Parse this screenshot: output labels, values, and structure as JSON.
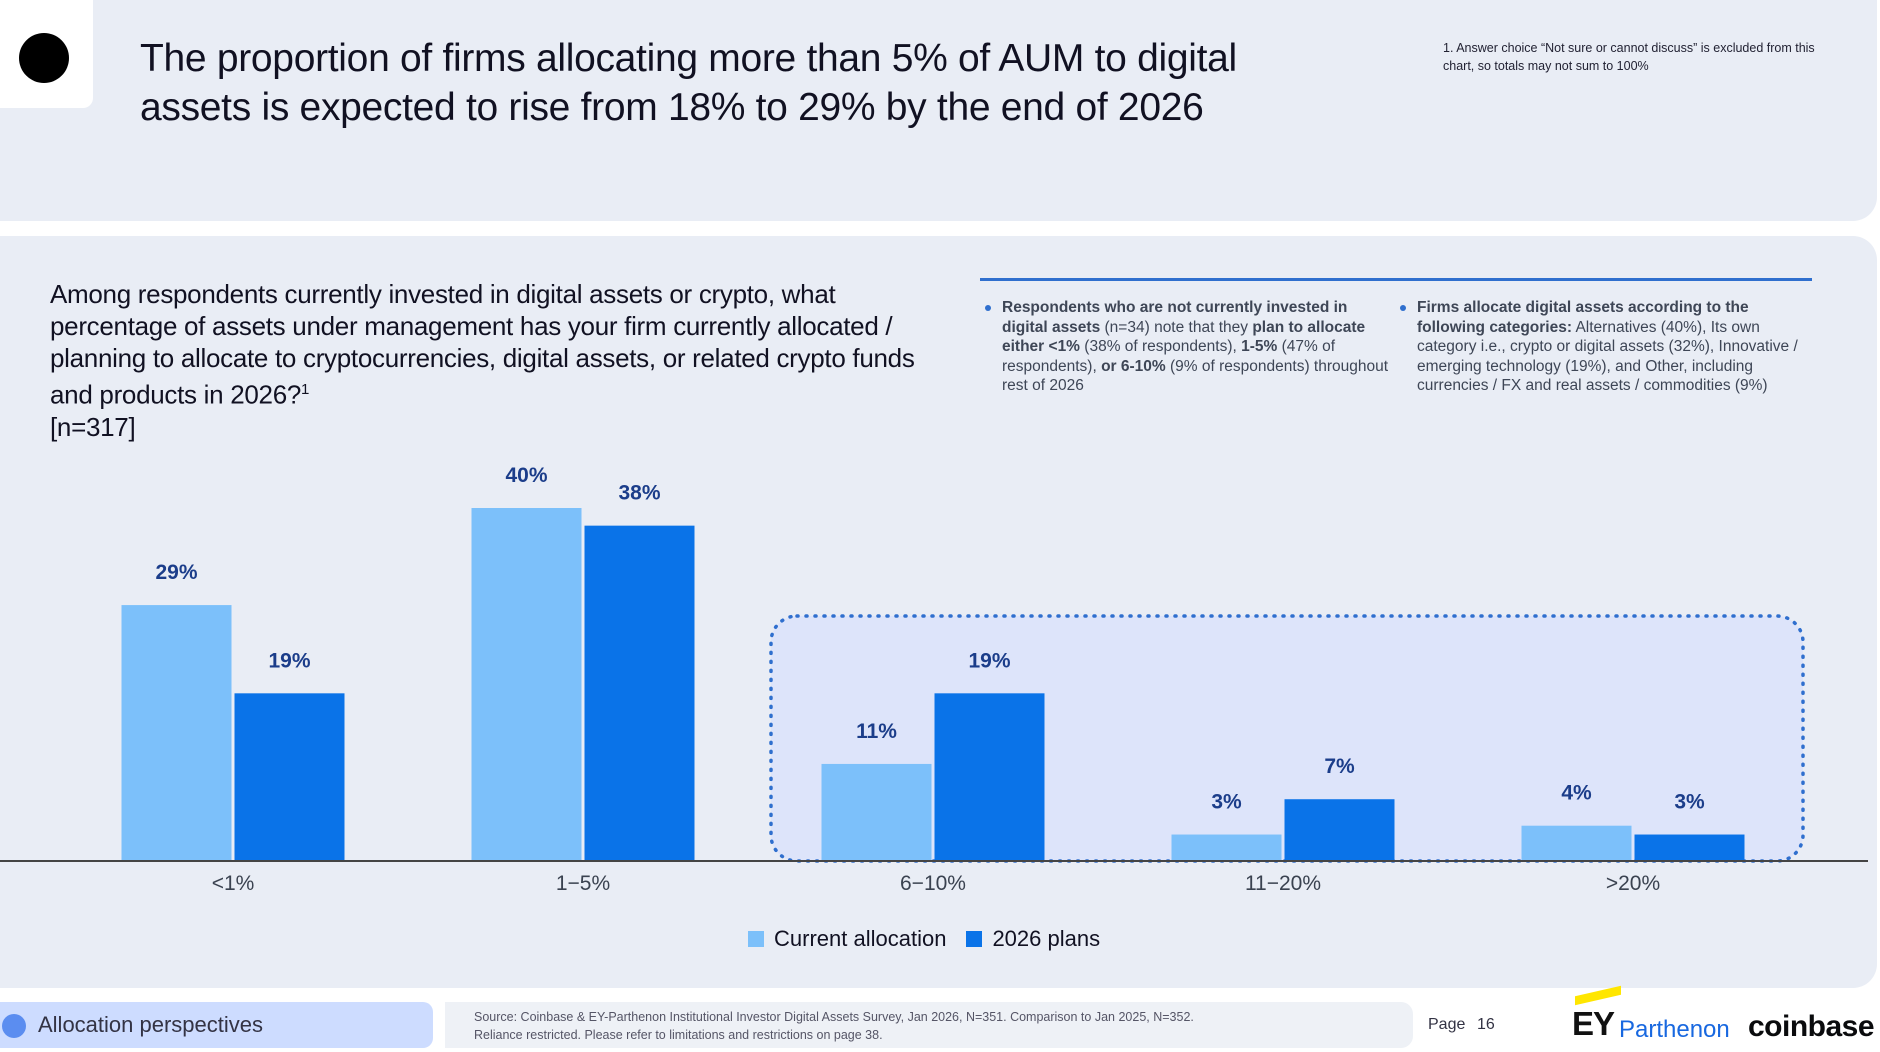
{
  "header": {
    "headline": "The proportion of firms allocating more than 5% of AUM to digital assets is expected to rise from 18% to 29% by the end of 2026",
    "footnote": "1.  Answer choice “Not sure or cannot discuss” is excluded from this chart, so totals may not sum to 100%"
  },
  "question": {
    "text": "Among respondents currently invested in digital assets or crypto, what percentage of assets under management has your firm currently allocated / planning to allocate to cryptocurrencies, digital assets, or related crypto funds and products in 2026?",
    "footnote_mark": "1",
    "sample": "[n=317]"
  },
  "notes": [
    {
      "parts": [
        {
          "text": "Respondents who are not currently invested in digital assets",
          "bold": true
        },
        {
          "text": " (n=34) note that they ",
          "bold": false
        },
        {
          "text": "plan to allocate either <1%",
          "bold": true
        },
        {
          "text": " (38% of respondents), ",
          "bold": false
        },
        {
          "text": "1-5%",
          "bold": true
        },
        {
          "text": " (47% of respondents), ",
          "bold": false
        },
        {
          "text": "or 6-10%",
          "bold": true
        },
        {
          "text": " (9% of respondents) throughout rest of 2026",
          "bold": false
        }
      ]
    },
    {
      "parts": [
        {
          "text": "Firms allocate digital assets according to the following categories:",
          "bold": true
        },
        {
          "text": " Alternatives (40%), Its own category i.e., crypto or digital assets (32%), Innovative / emerging technology (19%), and Other, including currencies / FX and real assets / commodities (9%)",
          "bold": false
        }
      ]
    }
  ],
  "chart_data": {
    "type": "bar",
    "categories": [
      "<1%",
      "1−5%",
      "6−10%",
      "11−20%",
      ">20%"
    ],
    "series": [
      {
        "name": "Current allocation",
        "values": [
          29,
          40,
          11,
          3,
          4
        ],
        "labels": [
          "29%",
          "40%",
          "11%",
          "3%",
          "4%"
        ],
        "color": "#7cc0fa"
      },
      {
        "name": "2026 plans",
        "values": [
          19,
          38,
          19,
          7,
          3
        ],
        "labels": [
          "19%",
          "38%",
          "19%",
          "7%",
          "3%"
        ],
        "color": "#0a73e8"
      }
    ],
    "ylim": [
      0,
      40
    ],
    "grid": false,
    "legend": "bottom-center",
    "highlighted_categories": [
      "6−10%",
      "11−20%",
      ">20%"
    ],
    "label_color": "#1b3d8a",
    "highlight_color": "#2f6fce"
  },
  "footer": {
    "section": "Allocation perspectives",
    "source_line1": "Source: Coinbase & EY-Parthenon Institutional Investor Digital Assets Survey, Jan 2026, N=351. Comparison to Jan 2025, N=352.",
    "source_line2": "Reliance restricted. Please refer to limitations and restrictions on page 38.",
    "page_label": "Page",
    "page_number": "16",
    "ey_letters": "EY",
    "ey_parthenon": "Parthenon",
    "coinbase": "coinbase"
  },
  "colors": {
    "panel": "#e9edf5",
    "accent": "#2f6fce",
    "pill": "#cddcff"
  }
}
